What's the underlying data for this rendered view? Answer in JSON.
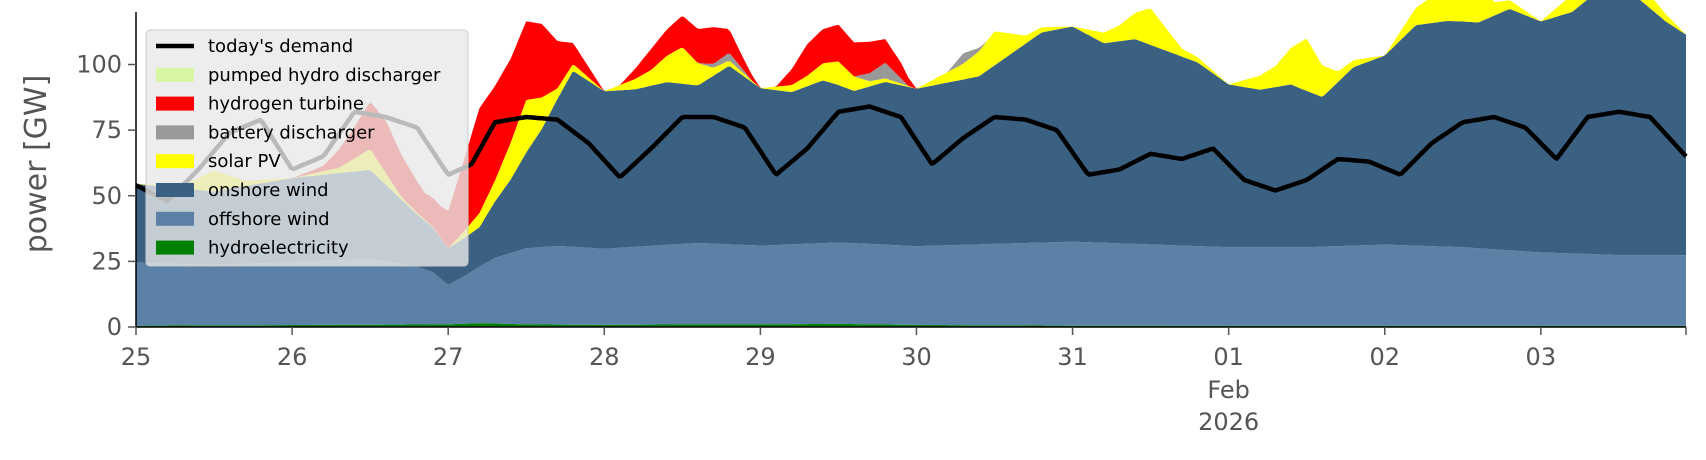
{
  "chart_data": {
    "type": "area",
    "title": "",
    "xlabel": "",
    "ylabel": "power [GW]",
    "ylim": [
      0,
      120
    ],
    "xlim_days": [
      0,
      9.93
    ],
    "x_ticks": [
      {
        "day": 0,
        "label": "25"
      },
      {
        "day": 1,
        "label": "26"
      },
      {
        "day": 2,
        "label": "27"
      },
      {
        "day": 3,
        "label": "28"
      },
      {
        "day": 4,
        "label": "29"
      },
      {
        "day": 5,
        "label": "30"
      },
      {
        "day": 6,
        "label": "31"
      },
      {
        "day": 7,
        "label": "01",
        "sublabel": "Feb",
        "sublabel2": "2026"
      },
      {
        "day": 8,
        "label": "02"
      },
      {
        "day": 9,
        "label": "03"
      }
    ],
    "y_ticks": [
      0,
      25,
      50,
      75,
      100
    ],
    "legend_position": "upper-left",
    "series": [
      {
        "name": "hydroelectricity",
        "color": "#008000",
        "x": [
          0,
          2,
          2.2,
          2.5,
          3,
          3.5,
          4,
          4.5,
          5,
          6,
          7,
          8,
          9,
          9.93
        ],
        "values": [
          0.5,
          1,
          1.5,
          1,
          0.8,
          1,
          1,
          1.2,
          0.8,
          0.5,
          0.4,
          0.4,
          0.4,
          0.4
        ]
      },
      {
        "name": "offshore wind",
        "color": "#5b82a6",
        "x": [
          0,
          0.5,
          1,
          1.5,
          1.8,
          1.9,
          2,
          2.1,
          2.3,
          2.5,
          2.7,
          3,
          3.3,
          3.6,
          4,
          4.5,
          5,
          5.5,
          6,
          6.5,
          7,
          7.5,
          8,
          8.5,
          9,
          9.5,
          9.93
        ],
        "values": [
          24,
          23,
          24,
          25,
          22,
          20,
          15,
          18,
          25,
          29,
          30,
          29,
          30,
          31,
          30,
          31,
          30,
          31,
          32,
          31,
          30,
          30,
          31,
          30,
          28,
          27,
          27
        ]
      },
      {
        "name": "onshore wind",
        "color": "#3b6182",
        "x": [
          0,
          0.5,
          1,
          1.5,
          1.8,
          2,
          2.2,
          2.4,
          2.6,
          2.8,
          3,
          3.2,
          3.4,
          3.6,
          3.8,
          4,
          4.2,
          4.4,
          4.6,
          4.8,
          5,
          5.2,
          5.4,
          5.6,
          5.8,
          6,
          6.2,
          6.4,
          6.6,
          6.8,
          7,
          7.2,
          7.4,
          7.6,
          7.8,
          8,
          8.2,
          8.4,
          8.6,
          8.8,
          9,
          9.2,
          9.4,
          9.6,
          9.8,
          9.93
        ],
        "values": [
          30,
          28,
          32,
          34,
          20,
          14,
          15,
          28,
          45,
          67,
          60,
          60,
          62,
          60,
          68,
          60,
          58,
          62,
          58,
          62,
          60,
          62,
          64,
          72,
          80,
          82,
          76,
          78,
          74,
          70,
          62,
          60,
          62,
          57,
          68,
          72,
          84,
          86,
          86,
          92,
          88,
          92,
          102,
          99,
          89,
          84
        ]
      },
      {
        "name": "solar PV",
        "color": "#ffff00",
        "x": [
          0,
          0.3,
          0.5,
          0.7,
          1,
          1.3,
          1.5,
          1.7,
          2,
          2.3,
          2.5,
          2.7,
          3,
          3.3,
          3.5,
          3.7,
          4,
          4.3,
          4.5,
          4.7,
          5,
          5.3,
          5.5,
          5.7,
          6,
          6.3,
          6.5,
          6.7,
          7,
          7.3,
          7.5,
          7.7,
          8,
          8.3,
          8.5,
          8.7,
          9,
          9.3,
          9.5,
          9.7,
          9.93
        ],
        "values": [
          0,
          1,
          8,
          2,
          0,
          2,
          8,
          1,
          0,
          8,
          20,
          4,
          0,
          6,
          14,
          3,
          0,
          4,
          9,
          2,
          0,
          6,
          13,
          3,
          0,
          6,
          14,
          3,
          0,
          8,
          20,
          4,
          0,
          10,
          28,
          5,
          0,
          10,
          26,
          5,
          0
        ]
      },
      {
        "name": "battery discharger",
        "color": "#999999",
        "x": [
          0,
          1,
          2,
          3,
          3.6,
          3.8,
          3.95,
          4,
          4.6,
          4.8,
          4.95,
          5,
          5.2,
          5.3,
          5.45,
          5.5,
          9.93
        ],
        "values": [
          0,
          0,
          0,
          0,
          0,
          3,
          0,
          0,
          0,
          6,
          0,
          0,
          0,
          4,
          0,
          0,
          0
        ]
      },
      {
        "name": "pumped hydro discharger",
        "color": "#d8f5a2",
        "x": [
          0,
          1,
          1.5,
          2,
          9.93
        ],
        "values": [
          0,
          0,
          0,
          0,
          0
        ]
      },
      {
        "name": "hydrogen turbine",
        "color": "#ff0000",
        "x": [
          0,
          0.8,
          1,
          1.2,
          1.4,
          1.5,
          1.6,
          1.75,
          1.85,
          1.95,
          2,
          2.2,
          2.4,
          2.6,
          2.8,
          3,
          3.1,
          3.3,
          3.5,
          3.7,
          3.9,
          4,
          4.1,
          4.3,
          4.5,
          4.7,
          4.9,
          5,
          5.1,
          9.93
        ],
        "values": [
          0,
          0,
          0,
          2,
          12,
          18,
          20,
          14,
          10,
          12,
          14,
          40,
          32,
          28,
          8,
          0,
          0,
          8,
          12,
          14,
          4,
          0,
          0,
          12,
          14,
          12,
          6,
          0,
          0,
          0
        ]
      },
      {
        "name": "today's demand",
        "color": "#000000",
        "x": [
          0,
          0.2,
          0.4,
          0.6,
          0.8,
          1,
          1.2,
          1.4,
          1.6,
          1.8,
          2,
          2.15,
          2.3,
          2.5,
          2.7,
          2.9,
          3.1,
          3.3,
          3.5,
          3.7,
          3.9,
          4.1,
          4.3,
          4.5,
          4.7,
          4.9,
          5.1,
          5.3,
          5.5,
          5.7,
          5.9,
          6.1,
          6.3,
          6.5,
          6.7,
          6.9,
          7.1,
          7.3,
          7.5,
          7.7,
          7.9,
          8.1,
          8.3,
          8.5,
          8.7,
          8.9,
          9.1,
          9.3,
          9.5,
          9.7,
          9.93
        ],
        "values": [
          54,
          48,
          60,
          74,
          79,
          60,
          65,
          82,
          80,
          76,
          58,
          62,
          78,
          80,
          79,
          70,
          57,
          68,
          80,
          80,
          76,
          58,
          68,
          82,
          84,
          80,
          62,
          72,
          80,
          79,
          75,
          58,
          60,
          66,
          64,
          68,
          56,
          52,
          56,
          64,
          63,
          58,
          70,
          78,
          80,
          76,
          64,
          80,
          82,
          80,
          65
        ]
      }
    ]
  },
  "legend": {
    "items": [
      {
        "name": "today's demand",
        "kind": "line",
        "color": "#000000"
      },
      {
        "name": "pumped hydro discharger",
        "kind": "patch",
        "color": "#d8f5a2"
      },
      {
        "name": "hydrogen turbine",
        "kind": "patch",
        "color": "#ff0000"
      },
      {
        "name": "battery discharger",
        "kind": "patch",
        "color": "#999999"
      },
      {
        "name": "solar PV",
        "kind": "patch",
        "color": "#ffff00"
      },
      {
        "name": "onshore wind",
        "kind": "patch",
        "color": "#3b6182"
      },
      {
        "name": "offshore wind",
        "kind": "patch",
        "color": "#5b82a6"
      },
      {
        "name": "hydroelectricity",
        "kind": "patch",
        "color": "#008000"
      }
    ]
  }
}
